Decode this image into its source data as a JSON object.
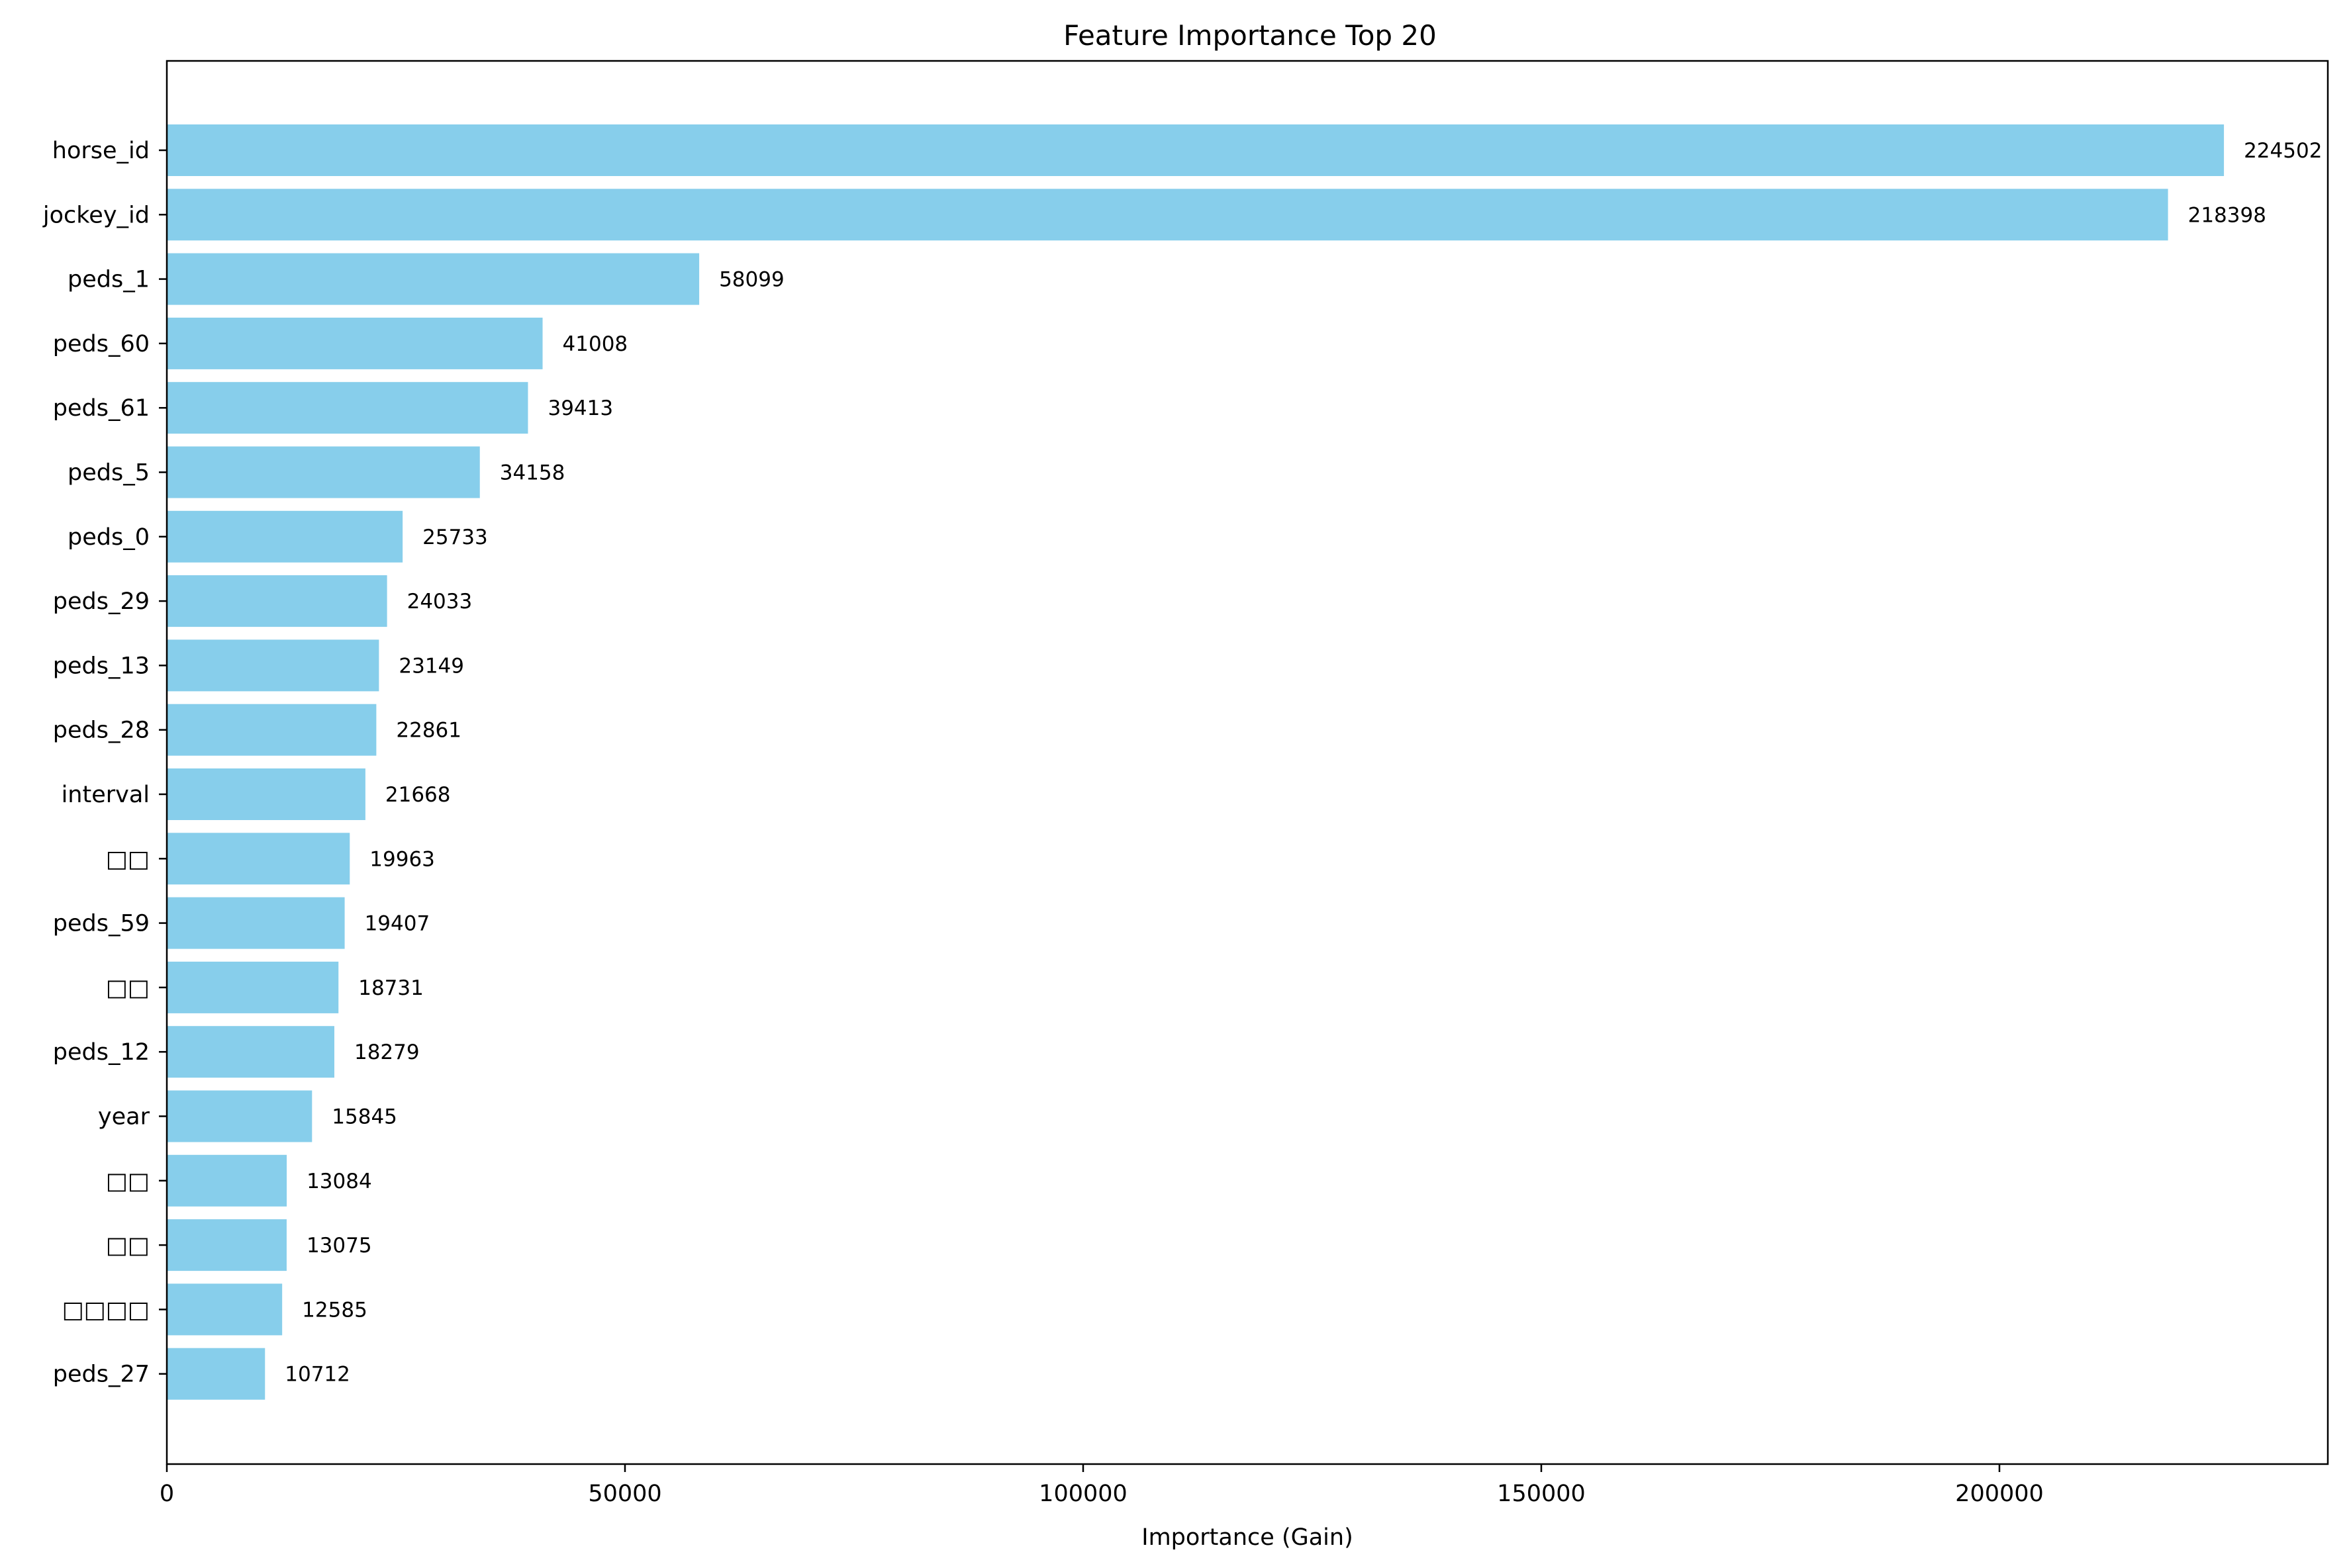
{
  "chart_data": {
    "type": "bar",
    "orientation": "horizontal",
    "title": "Feature Importance Top 20",
    "xlabel": "Importance (Gain)",
    "ylabel": "",
    "xlim": [
      0,
      235840
    ],
    "xticks": [
      0,
      50000,
      100000,
      150000,
      200000
    ],
    "grid": false,
    "legend": "none",
    "bar_color": "#87CEEB",
    "categories": [
      "horse_id",
      "jockey_id",
      "peds_1",
      "peds_60",
      "peds_61",
      "peds_5",
      "peds_0",
      "peds_29",
      "peds_13",
      "peds_28",
      "interval",
      "□□",
      "peds_59",
      "□□",
      "peds_12",
      "year",
      "□□",
      "□□",
      "□□□□",
      "peds_27"
    ],
    "values": [
      224502,
      218398,
      58099,
      41008,
      39413,
      34158,
      25733,
      24033,
      23149,
      22861,
      21668,
      19963,
      19407,
      18731,
      18279,
      15845,
      13084,
      13075,
      12585,
      10712
    ],
    "data_labels": [
      "224502",
      "218398",
      "58099",
      "41008",
      "39413",
      "34158",
      "25733",
      "24033",
      "23149",
      "22861",
      "21668",
      "19963",
      "19407",
      "18731",
      "18279",
      "15845",
      "13084",
      "13075",
      "12585",
      "10712"
    ]
  }
}
